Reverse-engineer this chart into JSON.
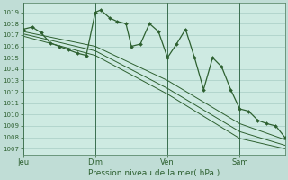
{
  "background_color": "#c0ddd6",
  "plot_bg_color": "#ceeae2",
  "grid_color": "#a8ccc4",
  "line_color": "#2d6030",
  "ylim": [
    1006.5,
    1019.8
  ],
  "yticks": [
    1007,
    1008,
    1009,
    1010,
    1011,
    1012,
    1013,
    1014,
    1015,
    1016,
    1017,
    1018,
    1019
  ],
  "xlabel": "Pression niveau de la mer( hPa )",
  "xtick_labels": [
    "Jeu",
    "Dim",
    "Ven",
    "Sam"
  ],
  "xtick_positions": [
    0,
    4,
    8,
    12
  ],
  "xlim": [
    0,
    14.5
  ],
  "band1_x": [
    0,
    4,
    8,
    12,
    14.5
  ],
  "band1_y": [
    1017.3,
    1016.0,
    1013.0,
    1009.2,
    1007.8
  ],
  "band2_y": [
    1017.1,
    1015.6,
    1012.3,
    1008.5,
    1007.3
  ],
  "band3_y": [
    1016.9,
    1015.2,
    1011.8,
    1007.9,
    1007.0
  ],
  "main_x": [
    0,
    0.5,
    1.0,
    1.5,
    2.0,
    2.5,
    3.0,
    3.5,
    4.0,
    4.3,
    4.8,
    5.2,
    5.7,
    6.0,
    6.5,
    7.0,
    7.5,
    8.0,
    8.5,
    9.0,
    9.5,
    10.0,
    10.5,
    11.0,
    11.5,
    12.0,
    12.5,
    13.0,
    13.5,
    14.0,
    14.5
  ],
  "main_y": [
    1017.5,
    1017.7,
    1017.2,
    1016.3,
    1016.0,
    1015.7,
    1015.4,
    1015.2,
    1019.0,
    1019.2,
    1018.5,
    1018.2,
    1018.0,
    1016.0,
    1016.2,
    1018.0,
    1017.3,
    1015.0,
    1016.2,
    1017.5,
    1015.0,
    1012.2,
    1015.0,
    1014.2,
    1012.2,
    1010.5,
    1010.3,
    1009.5,
    1009.2,
    1009.0,
    1008.0
  ],
  "marker_x": [
    0,
    0.5,
    1.0,
    1.5,
    2.0,
    2.5,
    3.0,
    3.5,
    4.0,
    4.3,
    4.8,
    5.2,
    5.7,
    6.0,
    6.5,
    7.0,
    7.5,
    8.0,
    8.5,
    9.0,
    9.5,
    10.0,
    10.5,
    11.0,
    11.5,
    12.0,
    12.5,
    13.0,
    13.5,
    14.0,
    14.5
  ],
  "marker_y": [
    1017.5,
    1017.7,
    1017.2,
    1016.3,
    1016.0,
    1015.7,
    1015.4,
    1015.2,
    1019.0,
    1019.2,
    1018.5,
    1018.2,
    1018.0,
    1016.0,
    1016.2,
    1018.0,
    1017.3,
    1015.0,
    1016.2,
    1017.5,
    1015.0,
    1012.2,
    1015.0,
    1014.2,
    1012.2,
    1010.5,
    1010.3,
    1009.5,
    1009.2,
    1009.0,
    1008.0
  ]
}
